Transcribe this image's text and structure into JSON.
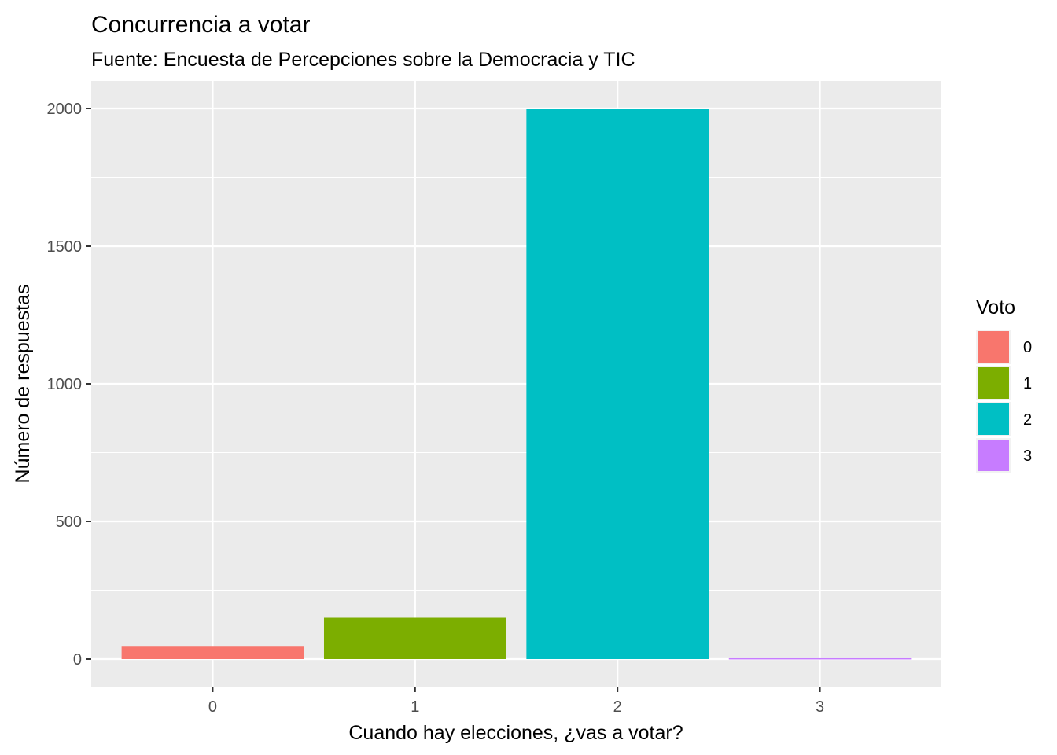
{
  "chart_data": {
    "type": "bar",
    "title": "Concurrencia a votar",
    "subtitle": "Fuente: Encuesta de Percepciones sobre la Democracia y TIC",
    "xlabel": "Cuando hay elecciones, ¿vas a votar?",
    "ylabel": "Número de respuestas",
    "categories": [
      "0",
      "1",
      "2",
      "3"
    ],
    "values": [
      45,
      150,
      2000,
      3
    ],
    "colors": [
      "#F8766D",
      "#7CAE00",
      "#00BFC4",
      "#C77CFF"
    ],
    "ylim": [
      -100,
      2100
    ],
    "y_ticks": [
      0,
      500,
      1000,
      1500,
      2000
    ],
    "y_tick_labels": [
      "0",
      "500",
      "1000",
      "1500",
      "2000"
    ],
    "grid": true,
    "legend": {
      "title": "Voto",
      "placement": "right",
      "entries": [
        "0",
        "1",
        "2",
        "3"
      ]
    }
  }
}
